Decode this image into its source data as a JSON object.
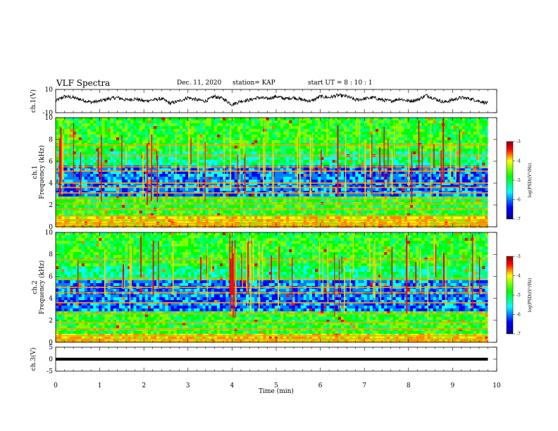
{
  "header": {
    "title": "VLF Spectra",
    "date": "Dec. 11, 2020",
    "station": "station= KAP",
    "start": "start  UT =  8 : 10 : 1"
  },
  "chart_data": [
    {
      "type": "line",
      "ylabel": "ch.1(V)",
      "ylim": [
        -10,
        10
      ],
      "yticks": [
        "10",
        "-10"
      ],
      "xlim": [
        0,
        10
      ],
      "x": [
        0,
        0.2,
        0.4,
        0.6,
        0.8,
        1.0,
        1.2,
        1.4,
        1.6,
        1.8,
        2.0,
        2.2,
        2.4,
        2.6,
        2.8,
        3.0,
        3.2,
        3.4,
        3.6,
        3.8,
        4.0,
        4.2,
        4.4,
        4.6,
        4.8,
        5.0,
        5.2,
        5.4,
        5.6,
        5.8,
        6.0,
        6.2,
        6.4,
        6.6,
        6.8,
        7.0,
        7.2,
        7.4,
        7.6,
        7.8,
        8.0,
        8.2,
        8.4,
        8.6,
        8.8,
        9.0,
        9.2,
        9.4,
        9.6,
        9.8
      ],
      "values": [
        0,
        4,
        3,
        1,
        -1,
        0,
        2,
        3,
        1,
        2,
        0,
        1,
        2,
        -2,
        0,
        3,
        1,
        0,
        4,
        2,
        -3,
        0,
        1,
        3,
        2,
        4,
        2,
        3,
        1,
        0,
        4,
        3,
        5,
        4,
        1,
        2,
        3,
        1,
        0,
        2,
        0,
        1,
        5,
        2,
        -1,
        1,
        3,
        2,
        0,
        -2
      ]
    },
    {
      "type": "heatmap",
      "ylabel": "ch.1\nFrequency (kHz)",
      "ylim": [
        0,
        10
      ],
      "yticks": [
        "0",
        "2",
        "4",
        "6",
        "8",
        "10"
      ],
      "xlim": [
        0,
        10
      ],
      "colorbar": {
        "label": "log(PSD)(V²/Hz)",
        "range": [
          -7,
          -3
        ],
        "ticks": [
          "-3",
          "-4",
          "-5",
          "-6",
          "-7"
        ]
      },
      "bands_khz": [
        0.1,
        0.3,
        0.6,
        1.0,
        1.6,
        2.1,
        2.6,
        3.1,
        3.6,
        4.0,
        5.1,
        5.5,
        6.5,
        7.5
      ]
    },
    {
      "type": "heatmap",
      "ylabel": "ch.2\nFrequency (kHz)",
      "ylim": [
        0,
        10
      ],
      "yticks": [
        "0",
        "2",
        "4",
        "6",
        "8",
        "10"
      ],
      "xlim": [
        0,
        10
      ],
      "colorbar": {
        "label": "log(PSD)(V²/Hz)",
        "range": [
          -7,
          -3
        ],
        "ticks": [
          "-3",
          "-4",
          "-5",
          "-6",
          "-7"
        ]
      },
      "bands_khz": [
        0.1,
        0.3,
        0.6,
        1.2,
        1.8,
        2.6,
        3.6,
        4.5,
        5.0,
        5.8,
        7.5
      ]
    },
    {
      "type": "line",
      "ylabel": "ch.3(V)",
      "ylim": [
        -5,
        5
      ],
      "yticks": [
        "5",
        "0",
        "-5"
      ],
      "xlim": [
        0,
        10
      ],
      "values_band": [
        -0.6,
        0.6
      ],
      "xlabel": "Time  (min)",
      "xticks": [
        "0",
        "1",
        "2",
        "3",
        "4",
        "5",
        "6",
        "7",
        "8",
        "9",
        "10"
      ]
    }
  ],
  "colors": {
    "scale": [
      "#00008b",
      "#0000ff",
      "#00ffff",
      "#00ff00",
      "#ffff00",
      "#ff0000",
      "#8b0000"
    ]
  }
}
